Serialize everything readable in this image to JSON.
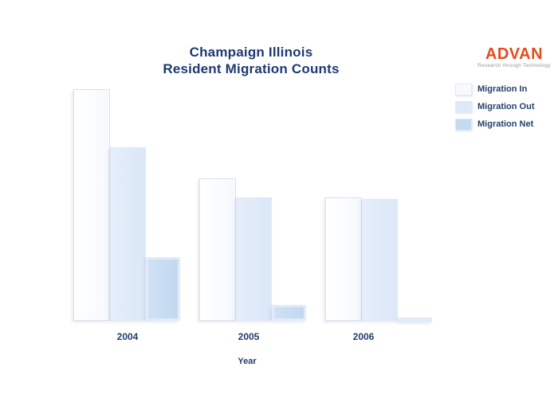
{
  "title": {
    "line1": "Champaign Illinois",
    "line2": "Resident Migration Counts",
    "color": "#1e3a71"
  },
  "logo": {
    "name": "ADVAN",
    "tagline": "Research through Technology",
    "brand_color": "#e8491d"
  },
  "legend": {
    "position": "top-right",
    "items": [
      {
        "label": "Migration In",
        "color": "#f8fafd",
        "border": "#e6e8f0"
      },
      {
        "label": "Migration Out",
        "color": "#dde9f8",
        "border": "#e3eaf6"
      },
      {
        "label": "Migration Net",
        "color": "#c4daf1",
        "border": "#dfe9f6"
      }
    ]
  },
  "x_axis": {
    "title": "Year",
    "tick_labels": [
      "2004",
      "2005",
      "2006"
    ],
    "color": "#243d6e"
  },
  "chart_data": {
    "type": "bar",
    "title": "Champaign Illinois Resident Migration Counts",
    "xlabel": "Year",
    "ylabel": "",
    "categories": [
      "2004",
      "2005",
      "2006"
    ],
    "series": [
      {
        "name": "Migration In",
        "values": [
          291,
          179,
          155
        ],
        "color": "#f8fafd"
      },
      {
        "name": "Migration Out",
        "values": [
          218,
          155,
          153
        ],
        "color": "#dde9f8"
      },
      {
        "name": "Migration Net",
        "values": [
          80,
          20,
          4
        ],
        "color": "#c4daf1"
      }
    ],
    "value_units": "relative (y-axis unlabeled; values estimated from bar heights in pixels)",
    "ylim": [
      0,
      300
    ],
    "grid": false,
    "axis_lines": false,
    "legend_position": "upper right"
  }
}
